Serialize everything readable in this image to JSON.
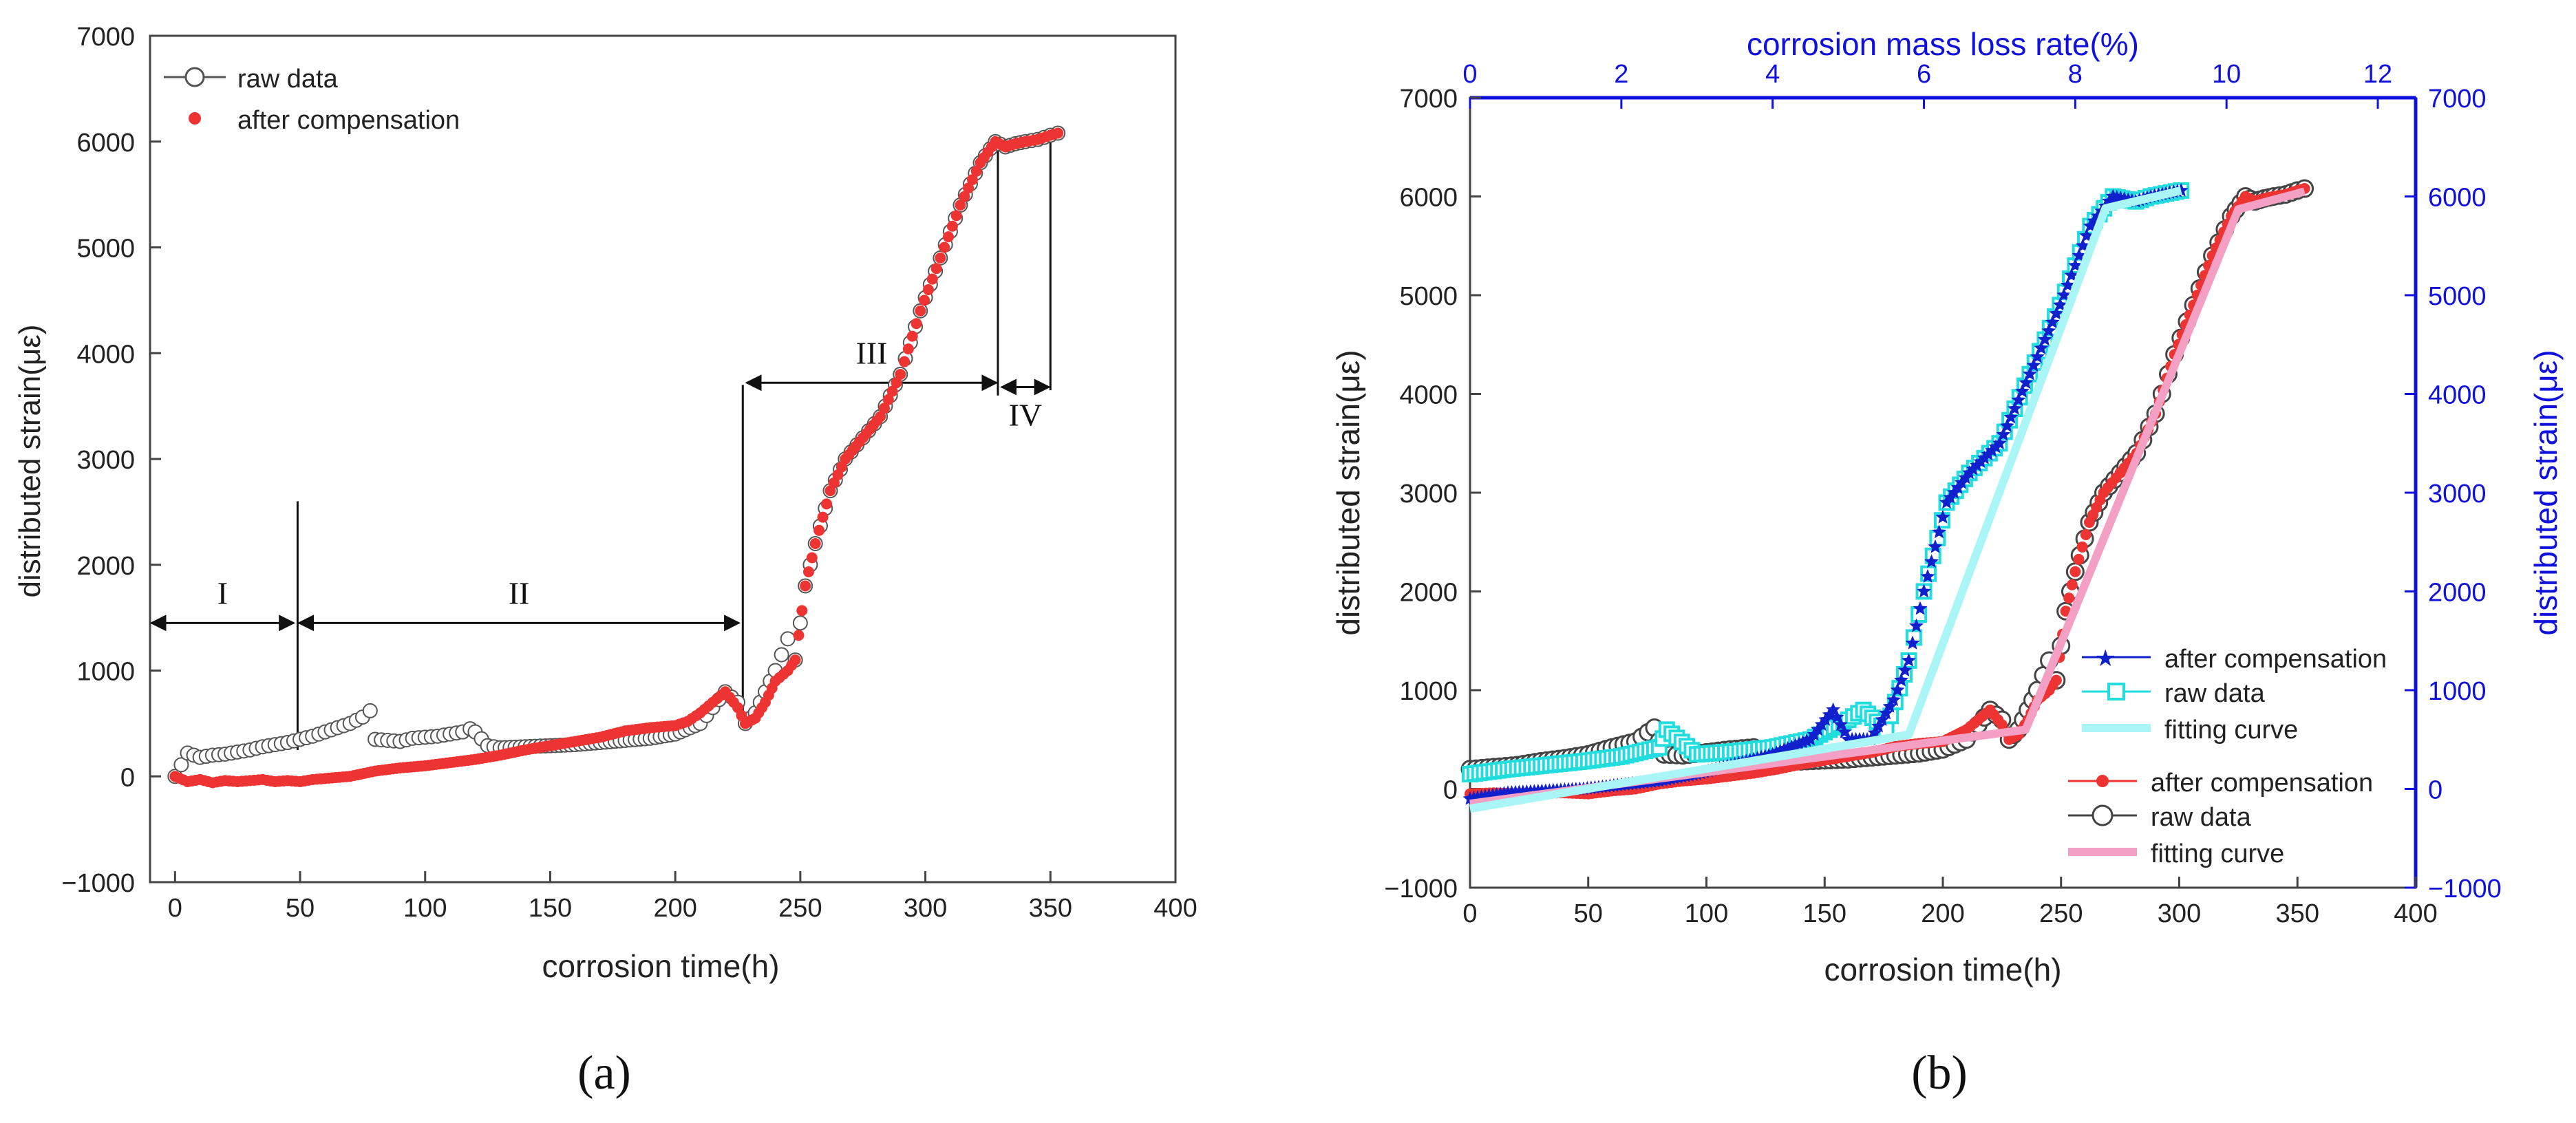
{
  "chart_data": [
    {
      "panel": "a",
      "panel_label": "(a)",
      "type": "scatter",
      "xlabel": "corrosion time(h)",
      "ylabel": "distributed strain(με)",
      "xlim": [
        -10,
        400
      ],
      "ylim": [
        -1000,
        7000
      ],
      "xticks": [
        0,
        50,
        100,
        150,
        200,
        250,
        300,
        350,
        400
      ],
      "yticks": [
        -1000,
        0,
        1000,
        2000,
        3000,
        4000,
        5000,
        6000,
        7000
      ],
      "ytick_labels": [
        "−1000",
        "0",
        "1000",
        "2000",
        "3000",
        "4000",
        "5000",
        "6000",
        "7000"
      ],
      "legend": [
        "raw data",
        "after compensation"
      ],
      "series": [
        {
          "name": "raw data",
          "marker": "open-circle",
          "color": "#555555",
          "x": [
            0,
            5,
            10,
            15,
            20,
            25,
            30,
            35,
            40,
            45,
            50,
            55,
            60,
            65,
            70,
            75,
            78,
            80,
            85,
            90,
            95,
            100,
            105,
            110,
            115,
            118,
            120,
            125,
            130,
            140,
            150,
            160,
            170,
            180,
            190,
            200,
            210,
            215,
            220,
            225,
            228,
            232,
            236,
            240,
            245,
            248,
            252,
            256,
            262,
            268,
            275,
            282,
            290,
            298,
            306,
            314,
            322,
            328,
            332,
            336,
            340,
            345,
            350,
            353
          ],
          "y": [
            0,
            220,
            180,
            200,
            210,
            230,
            250,
            280,
            300,
            320,
            350,
            380,
            420,
            460,
            500,
            560,
            620,
            350,
            340,
            330,
            360,
            370,
            380,
            400,
            420,
            450,
            420,
            290,
            270,
            280,
            290,
            300,
            320,
            340,
            360,
            400,
            500,
            650,
            800,
            700,
            500,
            600,
            800,
            1000,
            1300,
            1100,
            1800,
            2200,
            2700,
            3000,
            3200,
            3400,
            3800,
            4400,
            4900,
            5400,
            5800,
            6000,
            5950,
            5980,
            6000,
            6020,
            6060,
            6080
          ]
        },
        {
          "name": "after compensation",
          "marker": "filled-dot",
          "color": "#ee3333",
          "x": [
            0,
            5,
            10,
            15,
            20,
            25,
            30,
            35,
            40,
            45,
            50,
            55,
            60,
            70,
            80,
            90,
            100,
            110,
            120,
            130,
            140,
            150,
            160,
            170,
            180,
            190,
            200,
            205,
            210,
            215,
            220,
            225,
            228,
            232,
            236,
            240,
            245,
            248,
            252,
            256,
            262,
            268,
            275,
            282,
            290,
            298,
            306,
            314,
            322,
            328,
            332,
            336,
            340,
            345,
            350,
            353
          ],
          "y": [
            0,
            -50,
            -30,
            -60,
            -40,
            -50,
            -40,
            -30,
            -50,
            -40,
            -50,
            -30,
            -20,
            0,
            50,
            80,
            100,
            130,
            160,
            200,
            250,
            290,
            330,
            370,
            430,
            460,
            480,
            520,
            600,
            700,
            800,
            650,
            500,
            550,
            700,
            900,
            1000,
            1100,
            1800,
            2200,
            2700,
            3000,
            3200,
            3400,
            3800,
            4400,
            4900,
            5400,
            5800,
            6000,
            5950,
            5980,
            6000,
            6020,
            6060,
            6080
          ]
        }
      ],
      "annotations": [
        {
          "label": "I",
          "x_start": -10,
          "x_end": 48
        },
        {
          "label": "II",
          "x_start": 49,
          "x_end": 226
        },
        {
          "label": "III",
          "x_start": 228,
          "x_end": 329
        },
        {
          "label": "IV",
          "x_start": 330,
          "x_end": 350
        }
      ]
    },
    {
      "panel": "b",
      "panel_label": "(b)",
      "type": "scatter",
      "xlabel": "corrosion time(h)",
      "ylabel": "distributed strain(με)",
      "ylabel_right": "distributed strain(με)",
      "x2label": "corrosion mass loss rate(%)",
      "xlim": [
        0,
        400
      ],
      "x2lim": [
        0,
        12.5
      ],
      "ylim": [
        -1000,
        7000
      ],
      "xticks": [
        0,
        50,
        100,
        150,
        200,
        250,
        300,
        350,
        400
      ],
      "x2ticks": [
        0,
        2,
        4,
        6,
        8,
        10,
        12
      ],
      "yticks": [
        -1000,
        0,
        1000,
        2000,
        3000,
        4000,
        5000,
        6000,
        7000
      ],
      "ytick_labels": [
        "−1000",
        "0",
        "1000",
        "2000",
        "3000",
        "4000",
        "5000",
        "6000",
        "7000"
      ],
      "ytick_labels_right": [
        "−1000",
        "0",
        "1000",
        "2000",
        "3000",
        "4000",
        "5000",
        "6000",
        "7000"
      ],
      "legend_top": [
        "after compensation",
        "raw data",
        "fitting curve"
      ],
      "legend_bottom": [
        "after compensation",
        "raw data",
        "fitting curve"
      ],
      "colors": {
        "top_axis": "#1111dd",
        "right_axis": "#1111dd",
        "cyan": "#22dddd",
        "light_cyan": "#aaf5f5",
        "blue": "#1020cc",
        "red": "#ee3333",
        "dark": "#444444",
        "pink": "#f4a0c4"
      },
      "series": [
        {
          "name": "raw data",
          "axis": "time",
          "marker": "open-circle",
          "color": "#444444",
          "x": [
            0,
            10,
            20,
            30,
            40,
            50,
            60,
            70,
            78,
            82,
            90,
            100,
            110,
            120,
            130,
            140,
            150,
            160,
            170,
            180,
            190,
            200,
            210,
            215,
            220,
            225,
            228,
            232,
            236,
            240,
            245,
            248,
            252,
            256,
            262,
            268,
            275,
            282,
            290,
            298,
            306,
            314,
            322,
            328,
            332,
            336,
            340,
            345,
            350,
            353
          ],
          "y": [
            200,
            220,
            240,
            280,
            310,
            350,
            420,
            480,
            620,
            350,
            340,
            370,
            400,
            420,
            290,
            280,
            290,
            300,
            320,
            340,
            360,
            400,
            500,
            650,
            800,
            700,
            500,
            600,
            800,
            1000,
            1300,
            1100,
            1800,
            2200,
            2700,
            3000,
            3200,
            3400,
            3800,
            4400,
            4900,
            5400,
            5800,
            6000,
            5950,
            5980,
            6000,
            6020,
            6060,
            6080
          ]
        },
        {
          "name": "after compensation",
          "axis": "time",
          "marker": "filled-dot",
          "color": "#ee3333",
          "x": [
            0,
            10,
            20,
            30,
            40,
            50,
            60,
            70,
            80,
            90,
            100,
            110,
            120,
            130,
            140,
            150,
            160,
            170,
            180,
            190,
            200,
            210,
            215,
            220,
            225,
            228,
            232,
            236,
            240,
            245,
            248,
            252,
            256,
            262,
            268,
            275,
            282,
            290,
            298,
            306,
            314,
            322,
            328,
            332,
            336,
            340,
            345,
            350,
            353
          ],
          "y": [
            -50,
            -40,
            -50,
            -40,
            -40,
            -50,
            -20,
            0,
            50,
            80,
            100,
            130,
            160,
            200,
            250,
            290,
            330,
            370,
            430,
            460,
            480,
            600,
            700,
            800,
            650,
            500,
            550,
            700,
            900,
            1000,
            1100,
            1800,
            2200,
            2700,
            3000,
            3200,
            3400,
            3800,
            4400,
            4900,
            5400,
            5800,
            6000,
            5950,
            5980,
            6000,
            6020,
            6060,
            6080
          ]
        },
        {
          "name": "fitting curve",
          "axis": "time",
          "color": "#f4a0c4",
          "x": [
            0,
            235,
            325,
            353
          ],
          "y": [
            -150,
            600,
            5870,
            6050
          ]
        },
        {
          "name": "raw data",
          "axis": "mass_loss",
          "marker": "open-square",
          "color": "#22dddd",
          "x": [
            0,
            0.5,
            1,
            1.5,
            2,
            2.5,
            2.6,
            3,
            3.5,
            4,
            4.5,
            5,
            5.2,
            5.5,
            5.8,
            6,
            6.3,
            6.6,
            7,
            7.4,
            7.8,
            8.2,
            8.5,
            8.8,
            9,
            9.2,
            9.4
          ],
          "y": [
            150,
            200,
            240,
            280,
            330,
            420,
            600,
            350,
            380,
            420,
            500,
            700,
            800,
            600,
            1300,
            2000,
            2900,
            3200,
            3500,
            4200,
            4900,
            5700,
            6000,
            5950,
            6000,
            6030,
            6060
          ]
        },
        {
          "name": "after compensation",
          "axis": "mass_loss",
          "marker": "star",
          "color": "#1020cc",
          "x": [
            0,
            0.5,
            1,
            1.5,
            2,
            2.5,
            3,
            3.5,
            4,
            4.5,
            4.8,
            5,
            5.3,
            5.6,
            5.8,
            6,
            6.3,
            6.6,
            7,
            7.4,
            7.8,
            8.2,
            8.5,
            8.8,
            9,
            9.2,
            9.4
          ],
          "y": [
            -100,
            -40,
            -20,
            0,
            40,
            80,
            150,
            250,
            350,
            500,
            800,
            500,
            500,
            900,
            1300,
            2000,
            2900,
            3200,
            3500,
            4200,
            4900,
            5700,
            6000,
            5950,
            6000,
            6030,
            6060
          ]
        },
        {
          "name": "fitting curve",
          "axis": "mass_loss",
          "color": "#aaf5f5",
          "x": [
            0,
            5.8,
            8.4,
            9.4
          ],
          "y": [
            -200,
            550,
            5880,
            6060
          ]
        }
      ]
    }
  ]
}
